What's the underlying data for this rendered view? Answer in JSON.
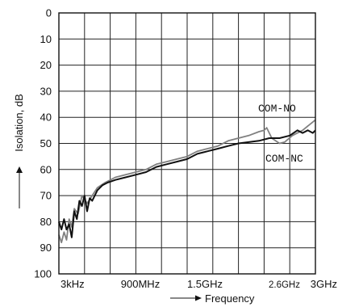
{
  "chart_data": {
    "type": "line",
    "title": "",
    "ylabel": "Isolation, dB",
    "xlabel": "Frequency",
    "y_axis_inverted": true,
    "ylim": [
      0,
      100
    ],
    "y_ticks": [
      "0",
      "10",
      "20",
      "30",
      "40",
      "50",
      "60",
      "70",
      "80",
      "90",
      "100"
    ],
    "x_ticks": [
      {
        "label": "3kHz",
        "small": false
      },
      {
        "label": "900MHz",
        "small": false
      },
      {
        "label": "1.5GHz",
        "small": false
      },
      {
        "label": "2.6GHz",
        "small": true
      },
      {
        "label": "3GHz",
        "small": false
      }
    ],
    "grid": true,
    "series": [
      {
        "name": "COM-NO",
        "color": "#808080",
        "values": [
          [
            0.0,
            85
          ],
          [
            0.01,
            88
          ],
          [
            0.02,
            84
          ],
          [
            0.03,
            87
          ],
          [
            0.04,
            79
          ],
          [
            0.05,
            82
          ],
          [
            0.06,
            75
          ],
          [
            0.075,
            77
          ],
          [
            0.09,
            70
          ],
          [
            0.11,
            73
          ],
          [
            0.13,
            70
          ],
          [
            0.15,
            67
          ],
          [
            0.18,
            65
          ],
          [
            0.22,
            63
          ],
          [
            0.26,
            62
          ],
          [
            0.3,
            61
          ],
          [
            0.34,
            60
          ],
          [
            0.38,
            58
          ],
          [
            0.42,
            57
          ],
          [
            0.46,
            56
          ],
          [
            0.5,
            55
          ],
          [
            0.54,
            53
          ],
          [
            0.58,
            52
          ],
          [
            0.62,
            51
          ],
          [
            0.66,
            49
          ],
          [
            0.7,
            48
          ],
          [
            0.74,
            47
          ],
          [
            0.78,
            45.5
          ],
          [
            0.8,
            45
          ],
          [
            0.81,
            44
          ],
          [
            0.83,
            48
          ],
          [
            0.86,
            50
          ],
          [
            0.88,
            49.5
          ],
          [
            0.91,
            47
          ],
          [
            0.95,
            45
          ],
          [
            1.0,
            41
          ]
        ]
      },
      {
        "name": "COM-NC",
        "color": "#111111",
        "values": [
          [
            0.0,
            80
          ],
          [
            0.01,
            83
          ],
          [
            0.02,
            79
          ],
          [
            0.03,
            83
          ],
          [
            0.04,
            81
          ],
          [
            0.05,
            86
          ],
          [
            0.06,
            76
          ],
          [
            0.07,
            79
          ],
          [
            0.08,
            72
          ],
          [
            0.09,
            74
          ],
          [
            0.1,
            70
          ],
          [
            0.11,
            76
          ],
          [
            0.12,
            71
          ],
          [
            0.13,
            72
          ],
          [
            0.15,
            68
          ],
          [
            0.17,
            66
          ],
          [
            0.19,
            65
          ],
          [
            0.22,
            64
          ],
          [
            0.26,
            63
          ],
          [
            0.3,
            62
          ],
          [
            0.34,
            61
          ],
          [
            0.38,
            59
          ],
          [
            0.42,
            58
          ],
          [
            0.46,
            57
          ],
          [
            0.5,
            56
          ],
          [
            0.54,
            54
          ],
          [
            0.58,
            53
          ],
          [
            0.62,
            52
          ],
          [
            0.66,
            51
          ],
          [
            0.7,
            50
          ],
          [
            0.74,
            49.5
          ],
          [
            0.78,
            49
          ],
          [
            0.82,
            48
          ],
          [
            0.86,
            48
          ],
          [
            0.9,
            47
          ],
          [
            0.93,
            45
          ],
          [
            0.95,
            46
          ],
          [
            0.97,
            45
          ],
          [
            0.99,
            46
          ],
          [
            1.0,
            45
          ]
        ]
      }
    ]
  }
}
